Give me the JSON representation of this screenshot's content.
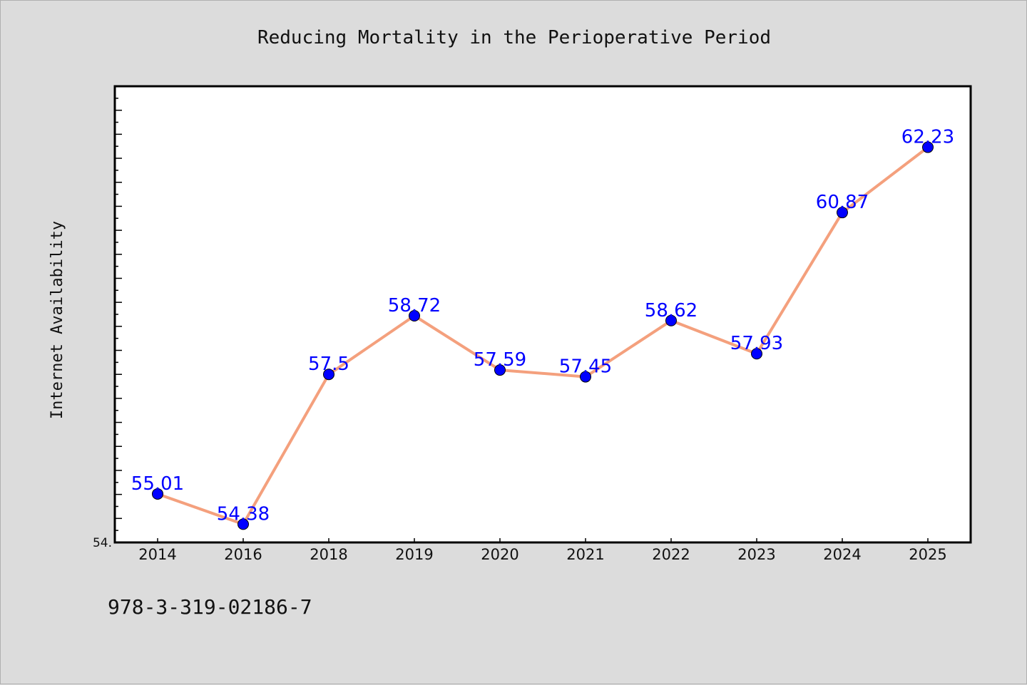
{
  "chart_data": {
    "type": "line",
    "title": "Reducing Mortality in the Perioperative Period",
    "ylabel": "Internet Availability",
    "xlabel": "",
    "categories": [
      "2014",
      "2016",
      "2018",
      "2019",
      "2020",
      "2021",
      "2022",
      "2023",
      "2024",
      "2025"
    ],
    "series": [
      {
        "values": [
          55.01,
          54.38,
          57.5,
          58.72,
          57.59,
          57.45,
          58.62,
          57.93,
          60.87,
          62.23
        ]
      }
    ],
    "data_labels": [
      "55.01",
      "54.38",
      "57.5",
      "58.72",
      "57.59",
      "57.45",
      "58.62",
      "57.93",
      "60.87",
      "62.23"
    ],
    "ylim": [
      54.0,
      63.5
    ],
    "y_tick_labels": [
      "54."
    ],
    "grid": false,
    "colors": {
      "line": "#f4a07d",
      "marker": "#0000ff",
      "label": "#0000ff",
      "background": "#dcdcdc"
    }
  },
  "footer": {
    "code": "978-3-319-02186-7"
  }
}
